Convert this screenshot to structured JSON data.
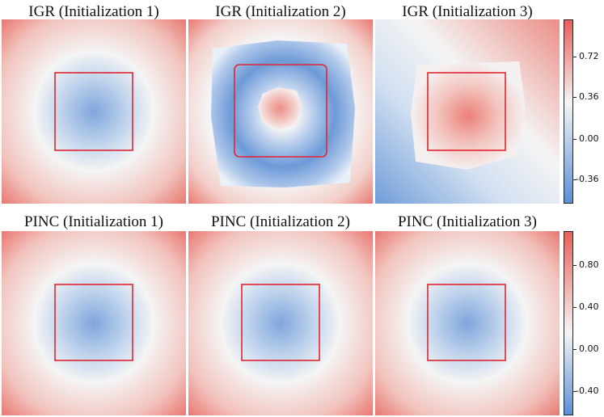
{
  "rows": [
    {
      "colorbar": {
        "ticks": [
          "0.72",
          "0.36",
          "0.00",
          "-0.36"
        ],
        "vmin": -0.5,
        "vmax": 0.9
      },
      "panels": [
        {
          "title": "IGR (Initialization 1)"
        },
        {
          "title": "IGR (Initialization 2)"
        },
        {
          "title": "IGR (Initialization 3)"
        }
      ]
    },
    {
      "colorbar": {
        "ticks": [
          "0.80",
          "0.40",
          "0.00",
          "-0.40"
        ],
        "vmin": -0.55,
        "vmax": 1.1
      },
      "panels": [
        {
          "title": "PINC (Initialization 1)"
        },
        {
          "title": "PINC (Initialization 2)"
        },
        {
          "title": "PINC (Initialization 3)"
        }
      ]
    }
  ],
  "colors": {
    "low": "#5b8fd6",
    "mid": "#f5f5f5",
    "high": "#e8605a",
    "shape_outline": "#e0262f"
  }
}
